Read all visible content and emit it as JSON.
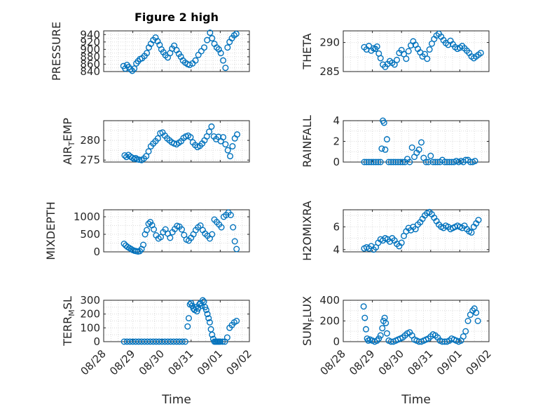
{
  "figure": {
    "title": "Figure 2 high"
  },
  "chart_data": [
    {
      "type": "scatter",
      "panel": "pressure",
      "title": "Figure 2 high",
      "ylabel": "PRESSURE",
      "ylim": [
        840,
        950
      ],
      "yticks": [
        840,
        860,
        880,
        900,
        920,
        940
      ],
      "xlim": [
        0,
        5
      ],
      "grid": true,
      "x": [
        0.68,
        0.74,
        0.8,
        0.86,
        0.92,
        0.98,
        1.05,
        1.12,
        1.18,
        1.25,
        1.32,
        1.4,
        1.48,
        1.55,
        1.62,
        1.7,
        1.78,
        1.85,
        1.92,
        1.98,
        2.05,
        2.12,
        2.2,
        2.28,
        2.35,
        2.42,
        2.5,
        2.58,
        2.65,
        2.72,
        2.8,
        2.88,
        2.95,
        3.05,
        3.15,
        3.25,
        3.35,
        3.45,
        3.55,
        3.65,
        3.72,
        3.8,
        3.88,
        3.95,
        4.02,
        4.1,
        4.18,
        4.25,
        4.32,
        4.4,
        4.48,
        4.55
      ],
      "y": [
        855,
        848,
        858,
        852,
        846,
        842,
        848,
        862,
        868,
        874,
        876,
        882,
        890,
        905,
        915,
        925,
        932,
        922,
        912,
        900,
        892,
        884,
        878,
        890,
        902,
        910,
        898,
        888,
        880,
        870,
        864,
        860,
        858,
        862,
        870,
        885,
        895,
        905,
        925,
        945,
        930,
        915,
        905,
        900,
        890,
        870,
        850,
        905,
        920,
        930,
        938,
        942
      ]
    },
    {
      "type": "scatter",
      "panel": "theta",
      "ylabel": "THETA",
      "ylim": [
        285,
        292
      ],
      "yticks": [
        285,
        290
      ],
      "xlim": [
        0,
        5
      ],
      "grid": true,
      "x": [
        0.72,
        0.8,
        0.88,
        0.96,
        1.04,
        1.1,
        1.16,
        1.22,
        1.28,
        1.36,
        1.44,
        1.52,
        1.6,
        1.68,
        1.76,
        1.84,
        1.92,
        2.0,
        2.08,
        2.16,
        2.24,
        2.32,
        2.4,
        2.48,
        2.56,
        2.64,
        2.72,
        2.8,
        2.88,
        2.96,
        3.04,
        3.12,
        3.2,
        3.28,
        3.36,
        3.44,
        3.52,
        3.6,
        3.68,
        3.76,
        3.84,
        3.92,
        4.0,
        4.08,
        4.16,
        4.24,
        4.32,
        4.4,
        4.48,
        4.56,
        4.64,
        4.72
      ],
      "y": [
        289.2,
        288.8,
        289.4,
        288.6,
        289.0,
        288.9,
        289.3,
        288.1,
        287.3,
        286.2,
        285.8,
        286.3,
        286.8,
        286.5,
        286.2,
        287.0,
        288.2,
        288.7,
        288.0,
        287.2,
        288.5,
        289.5,
        290.2,
        289.6,
        288.9,
        288.3,
        287.6,
        288.0,
        287.2,
        288.8,
        289.8,
        290.6,
        291.2,
        291.5,
        291.0,
        290.4,
        289.9,
        289.6,
        290.3,
        289.7,
        289.2,
        288.9,
        289.1,
        289.4,
        289.0,
        288.6,
        288.2,
        287.6,
        287.3,
        287.6,
        287.9,
        288.2
      ]
    },
    {
      "type": "scatter",
      "panel": "air_temp",
      "ylabel": "AIR_TEMP",
      "ylim": [
        274.5,
        285
      ],
      "yticks": [
        275,
        280
      ],
      "xlim": [
        0,
        5
      ],
      "grid": true,
      "x": [
        0.72,
        0.78,
        0.85,
        0.92,
        0.98,
        1.04,
        1.1,
        1.16,
        1.22,
        1.3,
        1.38,
        1.46,
        1.54,
        1.62,
        1.7,
        1.78,
        1.86,
        1.94,
        2.02,
        2.1,
        2.18,
        2.26,
        2.34,
        2.42,
        2.5,
        2.58,
        2.66,
        2.74,
        2.82,
        2.9,
        2.98,
        3.06,
        3.14,
        3.22,
        3.3,
        3.38,
        3.46,
        3.54,
        3.62,
        3.7,
        3.78,
        3.86,
        3.94,
        4.02,
        4.1,
        4.18,
        4.26,
        4.34,
        4.42,
        4.5,
        4.58
      ],
      "y": [
        276.2,
        275.8,
        276.3,
        275.9,
        275.6,
        275.3,
        275.5,
        275.2,
        275.1,
        275.0,
        275.4,
        276.0,
        277.2,
        278.5,
        279.2,
        279.8,
        280.5,
        281.8,
        282.0,
        281.2,
        280.5,
        280.0,
        279.5,
        279.2,
        279.0,
        279.4,
        279.8,
        280.6,
        281.0,
        281.2,
        280.8,
        279.5,
        278.8,
        278.3,
        278.6,
        279.2,
        280.0,
        281.0,
        282.2,
        283.5,
        281.0,
        280.3,
        280.9,
        279.8,
        280.8,
        279.0,
        277.5,
        276.0,
        278.5,
        280.5,
        281.5
      ]
    },
    {
      "type": "scatter",
      "panel": "rainfall",
      "ylabel": "RAINFALL",
      "ylim": [
        0,
        4
      ],
      "yticks": [
        0,
        2,
        4
      ],
      "xlim": [
        0,
        5
      ],
      "grid": true,
      "x": [
        0.72,
        0.8,
        0.88,
        0.96,
        1.04,
        1.12,
        1.2,
        1.28,
        1.32,
        1.36,
        1.4,
        1.44,
        1.5,
        1.56,
        1.64,
        1.72,
        1.8,
        1.88,
        1.96,
        2.04,
        2.12,
        2.2,
        2.28,
        2.36,
        2.44,
        2.52,
        2.6,
        2.68,
        2.76,
        2.84,
        2.92,
        3.0,
        3.08,
        3.16,
        3.24,
        3.32,
        3.4,
        3.48,
        3.56,
        3.64,
        3.72,
        3.8,
        3.88,
        3.96,
        4.04,
        4.12,
        4.2,
        4.28,
        4.36,
        4.44,
        4.52
      ],
      "y": [
        0,
        0,
        0,
        0,
        0,
        0,
        0,
        0,
        1.3,
        4.0,
        3.8,
        1.2,
        2.2,
        0,
        0,
        0,
        0,
        0,
        0,
        0,
        0,
        0.3,
        0,
        1.4,
        0.5,
        0.9,
        1.2,
        1.9,
        0.4,
        0,
        0,
        0.6,
        0,
        0,
        0,
        0,
        0.2,
        0,
        0,
        0,
        0,
        0,
        0.1,
        0,
        0.1,
        0,
        0.2,
        0.2,
        0,
        0,
        0.1
      ]
    },
    {
      "type": "scatter",
      "panel": "mixdepth",
      "ylabel": "MIXDEPTH",
      "ylim": [
        0,
        1200
      ],
      "yticks": [
        0,
        500,
        1000
      ],
      "xlim": [
        0,
        5
      ],
      "grid": true,
      "x": [
        0.7,
        0.76,
        0.82,
        0.88,
        0.94,
        1.0,
        1.06,
        1.12,
        1.18,
        1.24,
        1.3,
        1.36,
        1.42,
        1.48,
        1.54,
        1.6,
        1.66,
        1.72,
        1.8,
        1.88,
        1.96,
        2.04,
        2.12,
        2.2,
        2.28,
        2.36,
        2.44,
        2.52,
        2.6,
        2.68,
        2.76,
        2.84,
        2.92,
        3.0,
        3.08,
        3.16,
        3.24,
        3.32,
        3.4,
        3.48,
        3.56,
        3.64,
        3.72,
        3.8,
        3.88,
        3.96,
        4.04,
        4.12,
        4.2,
        4.28,
        4.36,
        4.44,
        4.5,
        4.56
      ],
      "y": [
        230,
        180,
        140,
        110,
        80,
        50,
        30,
        20,
        10,
        20,
        80,
        200,
        500,
        620,
        800,
        850,
        760,
        640,
        470,
        380,
        420,
        560,
        640,
        520,
        400,
        560,
        650,
        740,
        720,
        640,
        480,
        350,
        320,
        400,
        500,
        620,
        700,
        750,
        620,
        520,
        460,
        380,
        500,
        920,
        850,
        780,
        700,
        1000,
        1050,
        1120,
        1050,
        700,
        300,
        80
      ]
    },
    {
      "type": "scatter",
      "panel": "h2omixra",
      "ylabel": "H2OMIXRA",
      "ylim": [
        3.8,
        7.5
      ],
      "yticks": [
        4,
        6
      ],
      "xlim": [
        0,
        5
      ],
      "grid": true,
      "x": [
        0.72,
        0.8,
        0.88,
        0.96,
        1.04,
        1.12,
        1.2,
        1.28,
        1.36,
        1.44,
        1.52,
        1.6,
        1.68,
        1.76,
        1.84,
        1.92,
        2.0,
        2.08,
        2.16,
        2.24,
        2.32,
        2.4,
        2.48,
        2.56,
        2.64,
        2.72,
        2.8,
        2.88,
        2.96,
        3.04,
        3.12,
        3.2,
        3.28,
        3.36,
        3.44,
        3.52,
        3.6,
        3.68,
        3.76,
        3.84,
        3.92,
        4.0,
        4.08,
        4.16,
        4.24,
        4.32,
        4.4,
        4.48,
        4.56,
        4.64
      ],
      "y": [
        4.1,
        4.2,
        4.1,
        4.3,
        4.0,
        4.2,
        4.6,
        4.9,
        4.8,
        5.0,
        4.9,
        4.7,
        5.0,
        4.8,
        4.5,
        4.3,
        4.6,
        5.2,
        5.6,
        5.9,
        5.7,
        6.0,
        5.8,
        6.2,
        6.4,
        6.7,
        7.0,
        7.2,
        7.3,
        7.1,
        6.8,
        6.5,
        6.2,
        6.0,
        5.9,
        6.1,
        6.0,
        5.8,
        5.9,
        6.0,
        6.1,
        6.0,
        5.9,
        6.1,
        5.8,
        5.6,
        5.5,
        6.0,
        6.3,
        6.6
      ]
    },
    {
      "type": "scatter",
      "panel": "terr_msl",
      "ylabel": "TERR_MSL",
      "ylim": [
        0,
        300
      ],
      "yticks": [
        0,
        100,
        200,
        300
      ],
      "xlim": [
        0,
        5
      ],
      "grid": true,
      "x": [
        0.7,
        0.8,
        0.9,
        1.0,
        1.1,
        1.2,
        1.3,
        1.4,
        1.5,
        1.6,
        1.7,
        1.8,
        1.9,
        2.0,
        2.1,
        2.2,
        2.3,
        2.4,
        2.5,
        2.6,
        2.7,
        2.8,
        2.88,
        2.92,
        2.96,
        3.0,
        3.04,
        3.08,
        3.12,
        3.16,
        3.2,
        3.24,
        3.28,
        3.32,
        3.36,
        3.4,
        3.44,
        3.48,
        3.52,
        3.56,
        3.6,
        3.64,
        3.68,
        3.72,
        3.76,
        3.8,
        3.84,
        3.88,
        3.92,
        3.96,
        4.0,
        4.08,
        4.16,
        4.24,
        4.32,
        4.4,
        4.48,
        4.56
      ],
      "y": [
        0,
        0,
        0,
        0,
        0,
        0,
        0,
        0,
        0,
        0,
        0,
        0,
        0,
        0,
        0,
        0,
        0,
        0,
        0,
        0,
        0,
        0,
        110,
        170,
        270,
        280,
        260,
        240,
        230,
        250,
        220,
        240,
        270,
        280,
        260,
        300,
        290,
        250,
        230,
        200,
        170,
        140,
        90,
        50,
        20,
        0,
        0,
        0,
        0,
        0,
        0,
        0,
        0,
        30,
        100,
        120,
        140,
        150
      ]
    },
    {
      "type": "scatter",
      "panel": "sun_flux",
      "ylabel": "SUN_FLUX",
      "ylim": [
        0,
        400
      ],
      "yticks": [
        0,
        200,
        400
      ],
      "xlim": [
        0,
        5
      ],
      "grid": true,
      "x": [
        0.7,
        0.74,
        0.78,
        0.82,
        0.86,
        0.92,
        1.0,
        1.08,
        1.16,
        1.22,
        1.28,
        1.34,
        1.38,
        1.42,
        1.46,
        1.5,
        1.56,
        1.64,
        1.72,
        1.8,
        1.88,
        1.96,
        2.04,
        2.12,
        2.2,
        2.28,
        2.36,
        2.44,
        2.52,
        2.6,
        2.68,
        2.76,
        2.84,
        2.92,
        3.0,
        3.08,
        3.16,
        3.24,
        3.32,
        3.4,
        3.48,
        3.56,
        3.64,
        3.72,
        3.8,
        3.88,
        3.96,
        4.04,
        4.12,
        4.2,
        4.28,
        4.36,
        4.44,
        4.5,
        4.56,
        4.62
      ],
      "y": [
        340,
        230,
        120,
        30,
        10,
        20,
        10,
        0,
        10,
        30,
        60,
        130,
        200,
        230,
        180,
        80,
        10,
        0,
        0,
        10,
        20,
        30,
        40,
        60,
        80,
        90,
        60,
        20,
        10,
        0,
        0,
        10,
        20,
        30,
        50,
        70,
        60,
        40,
        10,
        0,
        0,
        0,
        10,
        30,
        20,
        10,
        0,
        10,
        50,
        100,
        200,
        260,
        300,
        320,
        280,
        200
      ]
    }
  ],
  "x_axis": {
    "label": "Time",
    "ticks": [
      {
        "value": 0,
        "label": "08/28"
      },
      {
        "value": 1,
        "label": "08/29"
      },
      {
        "value": 2,
        "label": "08/30"
      },
      {
        "value": 3,
        "label": "08/31"
      },
      {
        "value": 4,
        "label": "09/01"
      },
      {
        "value": 5,
        "label": "09/02"
      }
    ]
  },
  "colors": {
    "marker": "#0072BD",
    "axis": "#262626",
    "grid": "#dcdcdc"
  }
}
